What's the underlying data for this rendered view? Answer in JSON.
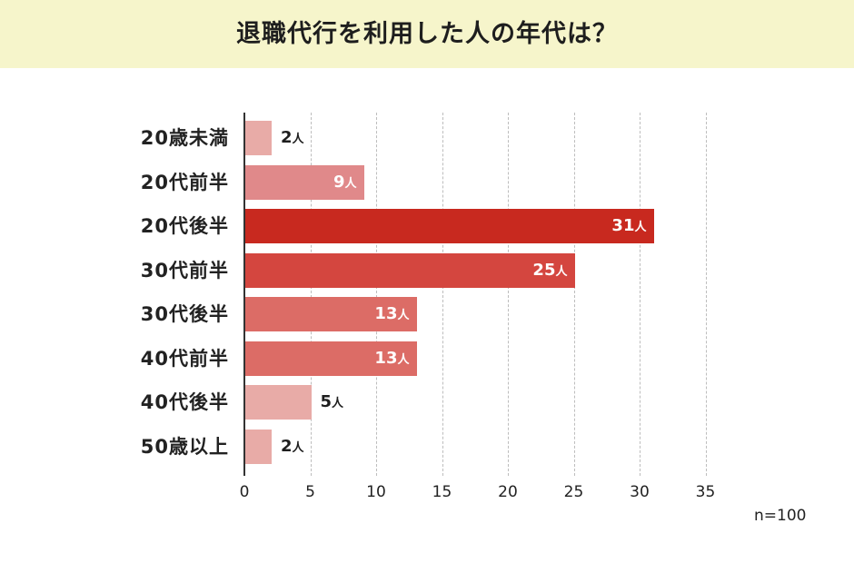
{
  "header": {
    "title": "退職代行を利用した人の年代は？"
  },
  "chart_data": {
    "type": "bar",
    "orientation": "horizontal",
    "title": "退職代行を利用した人の年代は？",
    "categories": [
      "20歳未満",
      "20代前半",
      "20代後半",
      "30代前半",
      "30代後半",
      "40代前半",
      "40代後半",
      "50歳以上"
    ],
    "values": [
      2,
      9,
      31,
      25,
      13,
      13,
      5,
      2
    ],
    "value_labels": [
      "2",
      "9",
      "31",
      "25",
      "13",
      "13",
      "5",
      "2"
    ],
    "unit": "人",
    "colors": [
      "#e8aba7",
      "#e0898a",
      "#c8291f",
      "#d4463f",
      "#dc6c66",
      "#dc6c66",
      "#e8aba7",
      "#e8aba7"
    ],
    "xlabel": "",
    "ylabel": "",
    "xlim": [
      0,
      35
    ],
    "xticks": [
      "0",
      "5",
      "10",
      "15",
      "20",
      "25",
      "30",
      "35"
    ],
    "grid": true,
    "annotation": "n=100"
  }
}
